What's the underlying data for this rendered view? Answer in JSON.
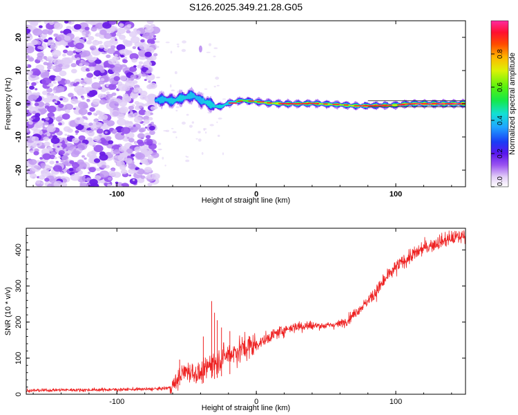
{
  "title": "S126.2025.349.21.28.G05",
  "chart_data": [
    {
      "type": "heatmap",
      "xlabel": "Height of straight line (km)",
      "ylabel": "Frequency (Hz)",
      "xlim": [
        -165,
        150
      ],
      "ylim": [
        -25,
        25
      ],
      "xticks": [
        -100,
        0,
        100
      ],
      "yticks": [
        -20,
        -10,
        0,
        10,
        20
      ],
      "ridge": {
        "x": [
          -72,
          -66,
          -60,
          -55,
          -50,
          -45,
          -40,
          -35,
          -30,
          -25,
          -20,
          -15,
          -10,
          -5,
          0,
          10,
          20,
          30,
          40,
          50,
          60,
          70,
          80,
          90,
          100,
          110,
          120,
          130,
          140,
          150
        ],
        "freq": [
          1.0,
          1.3,
          0.8,
          1.5,
          2.0,
          2.5,
          1.0,
          0.3,
          -0.8,
          -0.8,
          0.2,
          0.6,
          1.0,
          0.8,
          0.6,
          0.2,
          0.0,
          0.0,
          0.1,
          -0.1,
          -0.3,
          -0.6,
          -0.6,
          -0.5,
          -0.4,
          0.0,
          0.0,
          0.0,
          0.0,
          0.0
        ],
        "amplitude": [
          0.4,
          0.45,
          0.5,
          0.55,
          0.5,
          0.45,
          0.4,
          0.55,
          0.55,
          0.6,
          0.55,
          0.6,
          0.65,
          0.6,
          0.7,
          0.8,
          0.85,
          0.85,
          0.85,
          0.8,
          0.75,
          0.8,
          0.85,
          0.85,
          0.8,
          0.9,
          0.95,
          0.95,
          0.95,
          0.95
        ]
      },
      "noise_region_x": [
        -165,
        -72
      ],
      "colorbar": {
        "label": "Normalized spectral amplitude",
        "ticks": [
          0.0,
          0.2,
          0.4,
          0.6,
          0.8
        ],
        "range": [
          0,
          1
        ]
      }
    },
    {
      "type": "line",
      "xlabel": "Height of straight line (km)",
      "ylabel": "SNR (10 * v/v)",
      "xlim": [
        -165,
        150
      ],
      "ylim": [
        0,
        460
      ],
      "xticks": [
        -100,
        0,
        100
      ],
      "yticks": [
        0,
        100,
        200,
        300,
        400
      ],
      "color": "#ee2222",
      "series": [
        {
          "name": "SNR",
          "x": [
            -165,
            -140,
            -120,
            -100,
            -80,
            -70,
            -62,
            -58,
            -55,
            -50,
            -45,
            -40,
            -35,
            -32,
            -30,
            -25,
            -20,
            -15,
            -10,
            -5,
            0,
            5,
            10,
            15,
            20,
            25,
            30,
            35,
            40,
            50,
            60,
            65,
            70,
            75,
            80,
            85,
            90,
            95,
            100,
            105,
            110,
            115,
            120,
            130,
            140,
            150
          ],
          "y": [
            10,
            12,
            12,
            13,
            14,
            15,
            18,
            30,
            50,
            65,
            60,
            55,
            75,
            90,
            85,
            100,
            110,
            118,
            125,
            132,
            138,
            148,
            160,
            170,
            178,
            185,
            188,
            190,
            190,
            190,
            195,
            205,
            222,
            240,
            258,
            280,
            305,
            330,
            350,
            368,
            380,
            392,
            405,
            420,
            432,
            440
          ],
          "spikes": [
            {
              "x": -32,
              "y": 258
            },
            {
              "x": -30,
              "y": 226
            },
            {
              "x": -38,
              "y": 160
            },
            {
              "x": -25,
              "y": 185
            },
            {
              "x": -28,
              "y": 205
            },
            {
              "x": -19,
              "y": 175
            },
            {
              "x": -55,
              "y": 96
            }
          ]
        }
      ]
    }
  ]
}
